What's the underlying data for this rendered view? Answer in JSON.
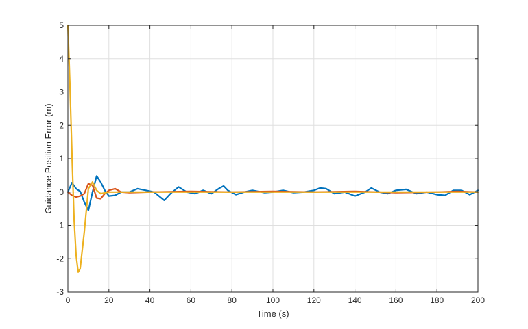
{
  "chart_data": {
    "type": "line",
    "title": "",
    "xlabel": "Time (s)",
    "ylabel": "Guidance Position Error (m)",
    "xlim": [
      0,
      200
    ],
    "ylim": [
      -3,
      5
    ],
    "xticks": [
      0,
      20,
      40,
      60,
      80,
      100,
      120,
      140,
      160,
      180,
      200
    ],
    "yticks": [
      -3,
      -2,
      -1,
      0,
      1,
      2,
      3,
      4,
      5
    ],
    "grid": true,
    "legend": "none",
    "series": [
      {
        "color": "#0072BD",
        "x": [
          0,
          2,
          4,
          6,
          8,
          10,
          12,
          14,
          16,
          18,
          20,
          23,
          26,
          30,
          34,
          38,
          42,
          45,
          47,
          50,
          54,
          58,
          62,
          66,
          70,
          74,
          76,
          78,
          82,
          86,
          90,
          96,
          100,
          105,
          110,
          115,
          120,
          123,
          126,
          130,
          135,
          140,
          145,
          148,
          152,
          156,
          160,
          165,
          170,
          175,
          180,
          184,
          188,
          192,
          196,
          200
        ],
        "y": [
          0.0,
          0.28,
          0.1,
          0.02,
          -0.3,
          -0.55,
          0.0,
          0.48,
          0.3,
          0.05,
          -0.12,
          -0.1,
          0.0,
          0.0,
          0.1,
          0.05,
          0.0,
          -0.15,
          -0.25,
          -0.05,
          0.15,
          0.0,
          -0.05,
          0.05,
          -0.05,
          0.12,
          0.18,
          0.05,
          -0.08,
          0.0,
          0.05,
          -0.02,
          0.0,
          0.05,
          -0.02,
          0.0,
          0.05,
          0.12,
          0.1,
          -0.05,
          0.0,
          -0.12,
          0.0,
          0.12,
          0.0,
          -0.05,
          0.05,
          0.08,
          -0.05,
          0.0,
          -0.08,
          -0.1,
          0.05,
          0.05,
          -0.08,
          0.05
        ]
      },
      {
        "color": "#D95319",
        "x": [
          0,
          2,
          4,
          6,
          8,
          10,
          12,
          14,
          16,
          18,
          20,
          23,
          26,
          30,
          40,
          60,
          80,
          100,
          120,
          140,
          160,
          180,
          190,
          200
        ],
        "y": [
          0.0,
          -0.1,
          -0.15,
          -0.12,
          -0.05,
          0.25,
          0.2,
          -0.18,
          -0.2,
          -0.05,
          0.05,
          0.1,
          0.0,
          -0.02,
          0.0,
          0.02,
          0.0,
          0.02,
          0.0,
          0.02,
          -0.02,
          0.0,
          0.02,
          0.0
        ]
      },
      {
        "color": "#EDB120",
        "x": [
          0,
          1,
          2,
          3,
          4,
          5,
          6,
          8,
          10,
          12,
          14,
          16,
          20,
          30,
          50,
          100,
          150,
          200
        ],
        "y": [
          5.0,
          3.2,
          1.1,
          -0.8,
          -1.9,
          -2.4,
          -2.3,
          -1.2,
          0.1,
          0.3,
          0.05,
          -0.05,
          0.0,
          0.0,
          0.0,
          0.0,
          0.0,
          0.0
        ]
      }
    ]
  }
}
